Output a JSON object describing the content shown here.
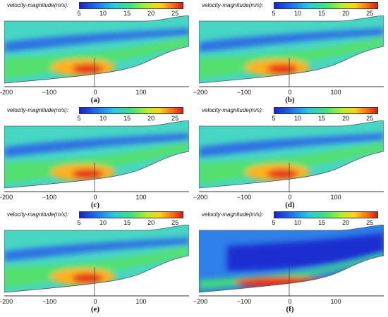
{
  "colorbar": {
    "label": "velocity-magnitude(m/s):",
    "ticks": [
      "5",
      "10",
      "15",
      "20",
      "25"
    ]
  },
  "x_ticks": [
    "−200",
    "−100",
    "0",
    "100"
  ],
  "panels": [
    {
      "id": "a",
      "label": "(a)"
    },
    {
      "id": "b",
      "label": "(b)"
    },
    {
      "id": "c",
      "label": "(c)"
    },
    {
      "id": "d",
      "label": "(d)"
    },
    {
      "id": "e",
      "label": "(e)"
    },
    {
      "id": "f",
      "label": "(f)"
    }
  ],
  "colors": {
    "low": "#1a20d8",
    "mid": "#3fe37a",
    "high": "#d81b12"
  }
}
